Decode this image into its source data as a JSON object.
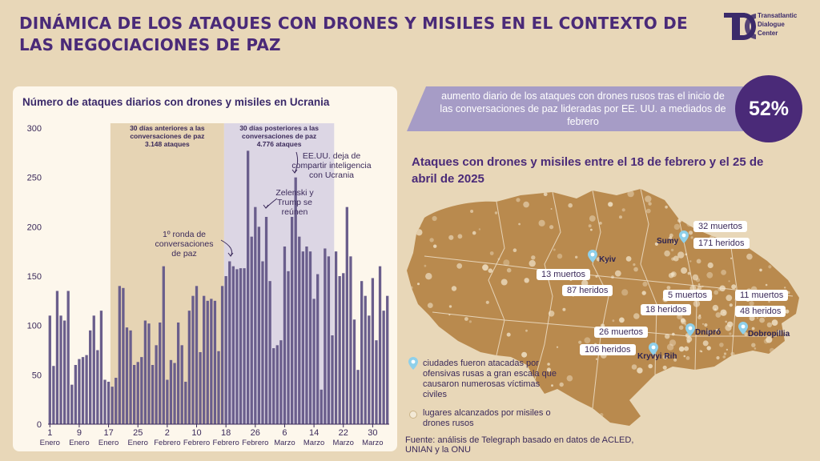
{
  "header": {
    "title": "DINÁMICA DE LOS ATAQUES CON DRONES Y MISILES EN EL CONTEXTO DE LAS NEGOCIACIONES DE PAZ",
    "logo_text": [
      "Transatlantic",
      "Dialogue",
      "Center"
    ],
    "logo_initials": "TDC"
  },
  "banner": {
    "text": "aumento diario de los ataques con drones rusos tras el inicio de las conversaciones de paz lideradas por EE. UU. a mediados de febrero",
    "percent": "52%"
  },
  "chart_data": {
    "type": "bar",
    "title": "Número de ataques diarios con drones y misiles en Ucrania",
    "ylim": [
      0,
      300
    ],
    "yticks": [
      0,
      50,
      100,
      150,
      200,
      250,
      300
    ],
    "x_ticks": [
      {
        "day": "1",
        "month": "Enero"
      },
      {
        "day": "9",
        "month": "Enero"
      },
      {
        "day": "17",
        "month": "Enero"
      },
      {
        "day": "25",
        "month": "Enero"
      },
      {
        "day": "2",
        "month": "Febrero"
      },
      {
        "day": "10",
        "month": "Febrero"
      },
      {
        "day": "18",
        "month": "Febrero"
      },
      {
        "day": "26",
        "month": "Febrero"
      },
      {
        "day": "6",
        "month": "Marzo"
      },
      {
        "day": "14",
        "month": "Marzo"
      },
      {
        "day": "22",
        "month": "Marzo"
      },
      {
        "day": "30",
        "month": "Marzo"
      }
    ],
    "values": [
      110,
      59,
      135,
      110,
      105,
      135,
      40,
      60,
      66,
      68,
      70,
      95,
      110,
      75,
      115,
      45,
      43,
      38,
      47,
      140,
      138,
      98,
      95,
      60,
      63,
      68,
      105,
      102,
      60,
      80,
      103,
      160,
      45,
      65,
      62,
      103,
      80,
      43,
      115,
      130,
      140,
      73,
      130,
      125,
      127,
      125,
      74,
      140,
      150,
      165,
      160,
      157,
      158,
      158,
      277,
      190,
      220,
      200,
      165,
      210,
      145,
      77,
      80,
      85,
      180,
      155,
      210,
      250,
      190,
      175,
      180,
      175,
      127,
      152,
      35,
      178,
      170,
      90,
      175,
      150,
      153,
      220,
      170,
      106,
      55,
      145,
      130,
      110,
      148,
      85,
      160,
      115,
      130
    ],
    "shaded_regions": [
      {
        "start_index": 17,
        "end_index": 48,
        "label_lines": [
          "30 días anteriores a las",
          "conversaciones de paz",
          "3.148 ataques"
        ],
        "color": "#e6d4b4"
      },
      {
        "start_index": 48,
        "end_index": 78,
        "label_lines": [
          "30 días posteriores a las",
          "conversaciones de paz",
          "4.776 ataques"
        ],
        "color": "#dcd6e4"
      }
    ],
    "annotations": [
      {
        "lines": [
          "1º ronda de",
          "conversaciones",
          "de paz"
        ],
        "index": 49
      },
      {
        "lines": [
          "Zelenski y",
          "Trump se",
          "reúnen"
        ],
        "index": 59
      },
      {
        "lines": [
          "EE.UU. deja de",
          "compartir inteligencia",
          "con Ucrania"
        ],
        "index": 66
      }
    ],
    "bar_color": "#6a5e8c"
  },
  "map": {
    "title": "Ataques con drones y misiles entre el 18 de febrero y el 25 de abril de 2025",
    "fill_color": "#b98a4e",
    "cities": [
      {
        "name": "Kyiv",
        "deaths": "13 muertos",
        "injured": "87 heridos"
      },
      {
        "name": "Sumy",
        "deaths": "32 muertos",
        "injured": "171 heridos"
      },
      {
        "name": "Dnipró",
        "deaths": "5 muertos",
        "injured": "18 heridos"
      },
      {
        "name": "Dobropillia",
        "deaths": "11 muertos",
        "injured": "48 heridos"
      },
      {
        "name": "Kryvyi Rih",
        "deaths": "26 muertos",
        "injured": "106 heridos"
      }
    ],
    "legend": {
      "pin_text": "ciudades fueron atacadas por ofensivas rusas a gran escala que causaron numerosas víctimas civiles",
      "dot_text": "lugares alcanzados por misiles o drones rusos"
    }
  },
  "source": "Fuente: análisis de Telegraph basado en datos de ACLED, UNIAN y la ONU"
}
